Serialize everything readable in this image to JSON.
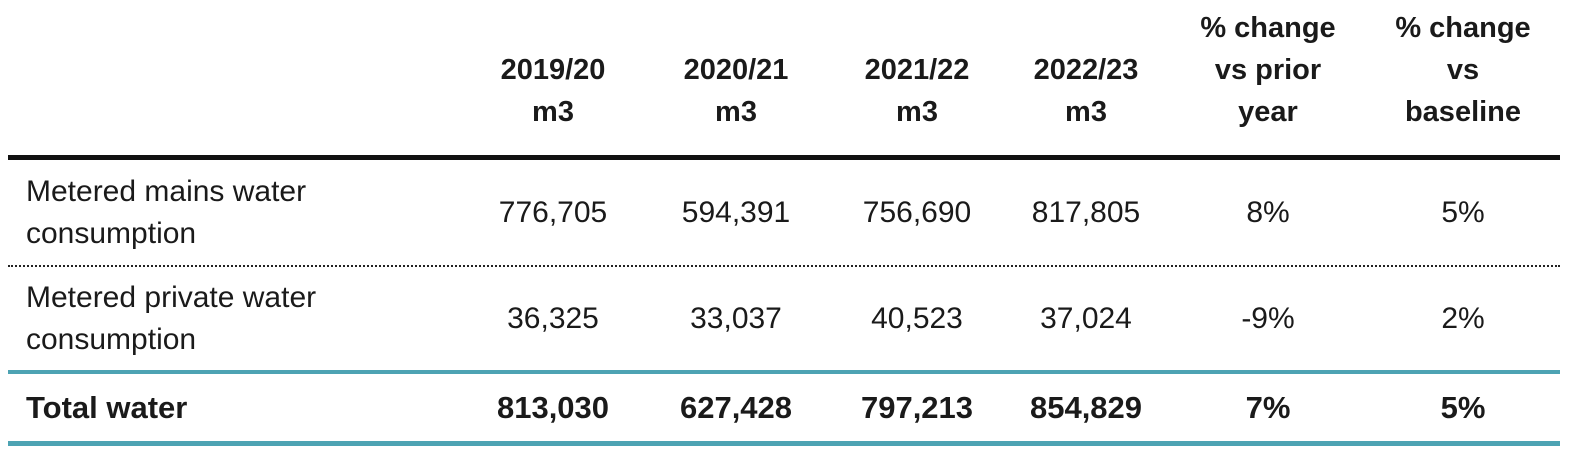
{
  "colors": {
    "header_rule": "#111111",
    "teal_rule": "#4da3b3",
    "text": "#1a1a1a"
  },
  "table": {
    "headers": [
      {
        "line1": "2019/20",
        "line2": "m3",
        "line3": ""
      },
      {
        "line1": "2020/21",
        "line2": "m3",
        "line3": ""
      },
      {
        "line1": "2021/22",
        "line2": "m3",
        "line3": ""
      },
      {
        "line1": "2022/23",
        "line2": "m3",
        "line3": ""
      },
      {
        "line1": "% change",
        "line2": "vs prior",
        "line3": "year"
      },
      {
        "line1": "% change",
        "line2": "vs",
        "line3": "baseline"
      }
    ],
    "rows": [
      {
        "label_line1": "Metered mains water",
        "label_line2": "consumption",
        "values": [
          "776,705",
          "594,391",
          "756,690",
          "817,805",
          "8%",
          "5%"
        ]
      },
      {
        "label_line1": "Metered private water",
        "label_line2": "consumption",
        "values": [
          "36,325",
          "33,037",
          "40,523",
          "37,024",
          "-9%",
          "2%"
        ]
      }
    ],
    "total": {
      "label": "Total water",
      "values": [
        "813,030",
        "627,428",
        "797,213",
        "854,829",
        "7%",
        "5%"
      ]
    }
  }
}
